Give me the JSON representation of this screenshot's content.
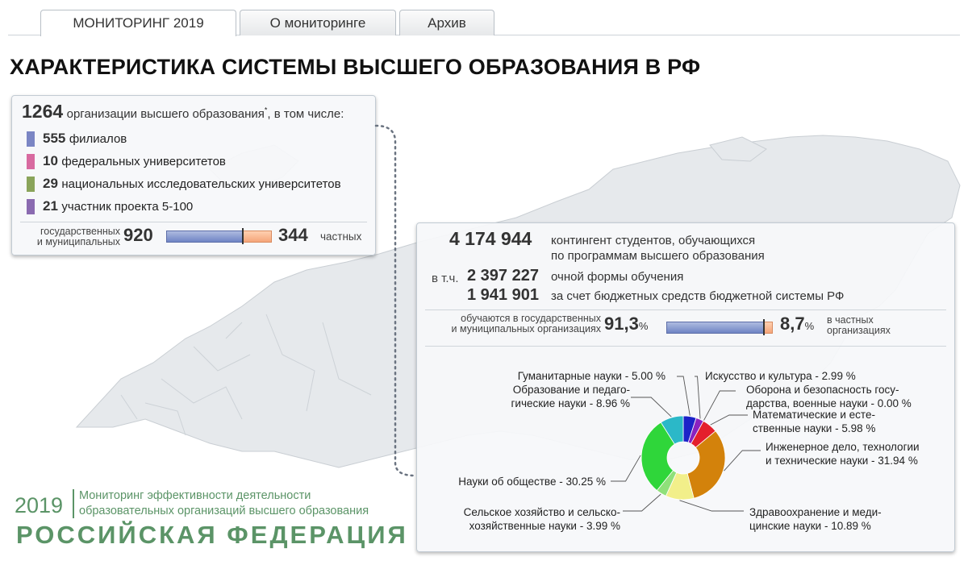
{
  "tabs": [
    {
      "label": "МОНИТОРИНГ 2019",
      "active": true
    },
    {
      "label": "О мониторинге",
      "active": false
    },
    {
      "label": "Архив",
      "active": false
    }
  ],
  "title": "ХАРАКТЕРИСТИКА СИСТЕМЫ ВЫСШЕГО ОБРАЗОВАНИЯ В РФ",
  "organizations": {
    "total": "1264",
    "total_label_pre": "организации высшего образования",
    "total_label_sup": "*",
    "total_label_post": ", в том числе:",
    "items": [
      {
        "value": "555",
        "label": "филиалов",
        "color": "#7b86c4"
      },
      {
        "value": "10",
        "label": "федеральных университетов",
        "color": "#d86aa0"
      },
      {
        "value": "29",
        "label": "национальных исследовательских университетов",
        "color": "#8aa45a"
      },
      {
        "value": "21",
        "label": "участник проекта 5-100",
        "color": "#8a6ab0"
      }
    ],
    "split": {
      "left_label_1": "государственных",
      "left_label_2": "и муниципальных",
      "left_value": "920",
      "right_value": "344",
      "right_label": "частных",
      "left_share": 0.728
    }
  },
  "students": {
    "total": "4 174 944",
    "total_label_1": "контингент студентов, обучающихся",
    "total_label_2": "по программам высшего образования",
    "fulltime_prefix": "в т.ч.",
    "fulltime_value": "2 397 227",
    "fulltime_label": "очной формы обучения",
    "budget_value": "1 941 901",
    "budget_label": "за счет бюджетных средств бюджетной системы РФ",
    "split": {
      "left_label_1": "обучаются в государственных",
      "left_label_2": "и муниципальных организациях",
      "left_value": "91,3",
      "left_unit": "%",
      "right_value": "8,7",
      "right_unit": "%",
      "right_label_1": "в частных",
      "right_label_2": "организациях",
      "left_share": 0.913
    }
  },
  "chart_data": {
    "type": "pie",
    "donut": true,
    "slices": [
      {
        "label": "Гуманитарные науки - 5.00 %",
        "value": 5.0,
        "color": "#1c22c8"
      },
      {
        "label": "Искусство и культура - 2.99 %",
        "value": 2.99,
        "color": "#8a22c0"
      },
      {
        "label": "Оборона и безопасность государства, военные науки - 0.00 %",
        "value": 0.0,
        "color": "#777777"
      },
      {
        "label": "Математические и естественные науки - 5.98 %",
        "value": 5.98,
        "color": "#e41f2c"
      },
      {
        "label": "Инженерное дело, технологии и технические науки - 31.94 %",
        "value": 31.94,
        "color": "#d3820b"
      },
      {
        "label": "Здравоохранение и медицинские науки - 10.89 %",
        "value": 10.89,
        "color": "#f2ef8a"
      },
      {
        "label": "Сельское хозяйство и сельскохозяйственные науки - 3.99 %",
        "value": 3.99,
        "color": "#8fe07a"
      },
      {
        "label": "Науки об обществе - 30.25 %",
        "value": 30.25,
        "color": "#2fd63a"
      },
      {
        "label": "Образование и педагогические науки - 8.96 %",
        "value": 8.96,
        "color": "#2bb8c8"
      }
    ]
  },
  "donut_labels": {
    "hum": "Гуманитарные науки - 5.00 %",
    "edu_1": "Образование и педаго-",
    "edu_2": "гические науки - 8.96 %",
    "art": "Искусство и культура - 2.99 %",
    "def_1": "Оборона и безопасность госу-",
    "def_2": "дарства, военные науки - 0.00 %",
    "math_1": "Математические и есте-",
    "math_2": "ственные науки - 5.98 %",
    "eng_1": "Инженерное дело, технологии",
    "eng_2": "и технические науки - 31.94 %",
    "soc": "Науки об обществе - 30.25 %",
    "agr_1": "Сельское хозяйство и сельско-",
    "agr_2": "хозяйственные науки - 3.99 %",
    "med_1": "Здравоохранение и меди-",
    "med_2": "цинские науки - 10.89 %"
  },
  "footer": {
    "year": "2019",
    "line1": "Мониторинг эффективности деятельности",
    "line2": "образовательных организаций высшего образования",
    "country": "РОССИЙСКАЯ ФЕДЕРАЦИЯ"
  },
  "colors": {
    "accent_green": "#5b9467",
    "bar_blue": "#7b8ec8",
    "bar_orange": "#f5a57a"
  }
}
